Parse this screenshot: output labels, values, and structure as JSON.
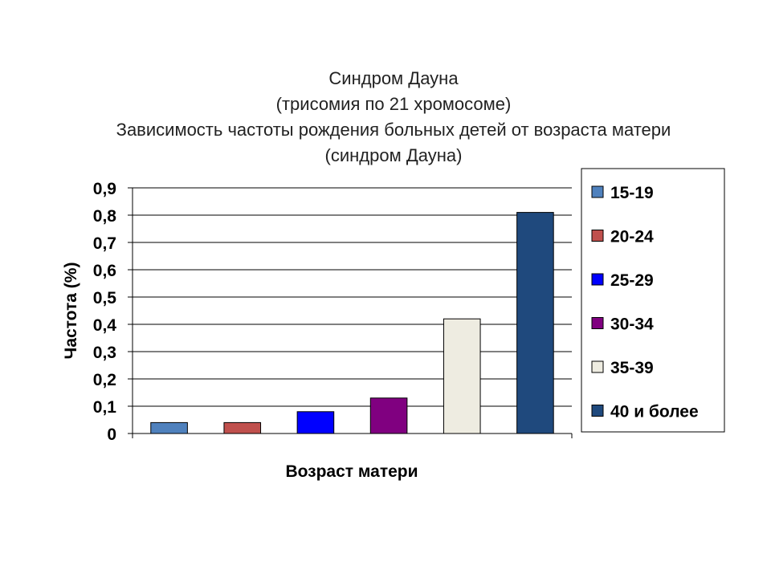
{
  "chart_data": {
    "type": "bar",
    "title_lines": [
      "Синдром Дауна",
      "(трисомия по 21 хромосоме)",
      "Зависимость частоты рождения больных детей от возраста матери",
      "(синдром Дауна)"
    ],
    "xlabel": "Возраст матери",
    "ylabel": "Частота (%)",
    "ylim": [
      0,
      0.9
    ],
    "yticks": [
      "0",
      "0,1",
      "0,2",
      "0,3",
      "0,4",
      "0,5",
      "0,6",
      "0,7",
      "0,8",
      "0,9"
    ],
    "grid": true,
    "legend_position": "right",
    "series": [
      {
        "name": "15-19",
        "value": 0.04,
        "color": "#4F81BD"
      },
      {
        "name": "20-24",
        "value": 0.04,
        "color": "#C0504D"
      },
      {
        "name": "25-29",
        "value": 0.08,
        "color": "#0000FF"
      },
      {
        "name": "30-34",
        "value": 0.13,
        "color": "#800080"
      },
      {
        "name": "35-39",
        "value": 0.42,
        "color": "#EEECE1"
      },
      {
        "name": "40 и более",
        "value": 0.81,
        "color": "#1F497D"
      }
    ]
  }
}
